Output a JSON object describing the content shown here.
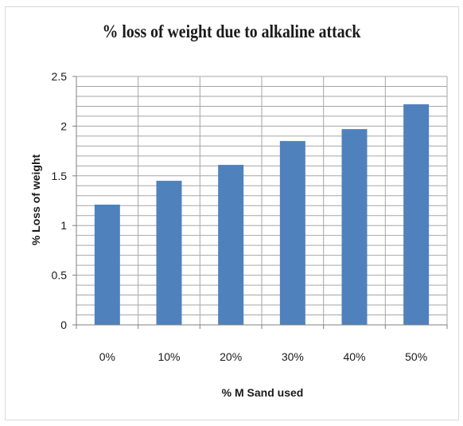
{
  "chart_data": {
    "type": "bar",
    "title": "% loss of weight due to alkaline attack",
    "xlabel": "% M Sand used",
    "ylabel": "% Loss of weight",
    "categories": [
      "0%",
      "10%",
      "20%",
      "30%",
      "40%",
      "50%"
    ],
    "values": [
      1.21,
      1.45,
      1.61,
      1.85,
      1.97,
      2.22
    ],
    "ylim": [
      0,
      2.5
    ],
    "yticks": [
      "0",
      "0.5",
      "1",
      "1.5",
      "2",
      "2.5"
    ],
    "ytick_values": [
      0,
      0.5,
      1,
      1.5,
      2,
      2.5
    ],
    "minor_step": 0.1,
    "grid": true,
    "legend": "none",
    "bar_color": "#4f81bd",
    "grid_color": "#a6a6a6"
  }
}
